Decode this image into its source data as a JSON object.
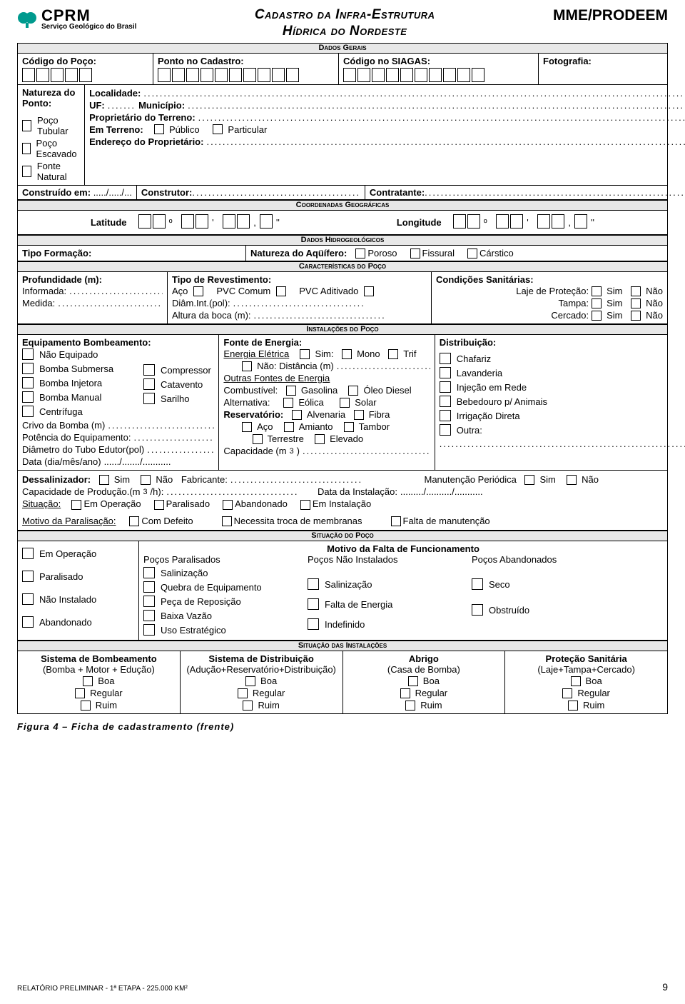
{
  "brand": {
    "name": "CPRM",
    "tagline": "Serviço Geológico do Brasil",
    "logo_color": "#009a8e"
  },
  "title_line1": "Cadastro da Infra-Estrutura",
  "title_line2": "Hídrica do Nordeste",
  "mme": "MME/PRODEEM",
  "box_counts": {
    "codigo_poco": 5,
    "ponto_cadastro": 10,
    "codigo_siagas": 10,
    "lat_deg": 2,
    "lat_min": 2,
    "lat_sec_a": 2,
    "lat_sec_b": 1,
    "lon_deg": 2,
    "lon_min": 2,
    "lon_sec_a": 2,
    "lon_sec_b": 1
  },
  "gerais": {
    "header": "Dados Gerais",
    "codigo_poco": "Código do Poço:",
    "ponto_cadastro": "Ponto no Cadastro:",
    "codigo_siagas": "Código no SIAGAS:",
    "fotografia": "Fotografia:",
    "natureza_ponto": "Natureza do Ponto:",
    "natureza_opts": [
      "Poço Tubular",
      "Poço Escavado",
      "Fonte Natural"
    ],
    "localidade": "Localidade:",
    "uf": "UF:",
    "municipio": "Município:",
    "proprietario": "Proprietário do Terreno:",
    "em_terreno": "Em Terreno:",
    "publico": "Público",
    "particular": "Particular",
    "endereco": "Endereço do Proprietário:",
    "construido": "Construído em:",
    "slashes": "...../...../...",
    "construtor": "Construtor:",
    "contratante": "Contratante:"
  },
  "coord": {
    "header": "Coordenadas Geográficas",
    "latitude": "Latitude",
    "longitude": "Longitude",
    "deg": "º",
    "min": "'",
    "sec": "''",
    "comma": ","
  },
  "hidro": {
    "header": "Dados Hidrogeológicos",
    "tipo_formacao": "Tipo Formação:",
    "natureza": "Natureza do Aqüífero:",
    "opts": [
      "Poroso",
      "Fissural",
      "Cárstico"
    ]
  },
  "carac": {
    "header": "Características do Poço",
    "prof": "Profundidade (m):",
    "informada": "Informada:",
    "medida": "Medida:",
    "tipo_rev": "Tipo de Revestimento:",
    "rev_opts": [
      "Aço",
      "PVC Comum",
      "PVC Aditivado"
    ],
    "diam": "Diâm.Int.(pol):",
    "altura": "Altura da boca (m):",
    "cond": "Condições Sanitárias:",
    "cond_rows": [
      "Laje de Proteção:",
      "Tampa:",
      "Cercado:"
    ],
    "sim": "Sim",
    "nao": "Não"
  },
  "instal": {
    "header": "Instalações do Poço",
    "equip": "Equipamento Bombeamento:",
    "equip_left": [
      "Não Equipado",
      "Bomba Submersa",
      "Bomba Injetora",
      "Bomba Manual",
      "Centrífuga"
    ],
    "equip_right": [
      "Compressor",
      "Catavento",
      "Sarilho"
    ],
    "crivo": "Crivo da Bomba (m)",
    "potencia": "Potência do Equipamento:",
    "diam_tubo": "Diâmetro do Tubo Edutor(pol)",
    "data": "Data (dia/mês/ano)",
    "data_slashes": "....../......./...........",
    "fonte": "Fonte de Energia:",
    "energia_u": "Energia Elétrica",
    "sim": "Sim:",
    "mono": "Mono",
    "trif": "Trif",
    "nao_dist": "Não:  Distância (m)",
    "outras_u": "Outras Fontes de Energia",
    "combustivel": "Combustível:",
    "gasolina": "Gasolina",
    "oleo": "Óleo Diesel",
    "alternativa": "Alternativa:",
    "eolica": "Eólica",
    "solar": "Solar",
    "reservatorio": "Reservatório:",
    "alvenaria": "Alvenaria",
    "fibra": "Fibra",
    "aco": "Aço",
    "amianto": "Amianto",
    "tambor": "Tambor",
    "terrestre": "Terrestre",
    "elevado": "Elevado",
    "capacidade": "Capacidade (m",
    "cap_sup": "3",
    "cap_end": ")",
    "dist": "Distribuição:",
    "dist_opts": [
      "Chafariz",
      "Lavanderia",
      "Injeção em Rede",
      "Bebedouro p/ Animais",
      "Irrigação Direta",
      "Outra:"
    ]
  },
  "dessal": {
    "label": "Dessalinizador:",
    "sim": "Sim",
    "nao": "Não",
    "fabricante": "Fabricante:",
    "manut": "Manutenção Periódica",
    "cap_prod": "Capacidade de Produção.(m",
    "cap_sup": "3",
    "cap_unit": "/h):",
    "data_inst": "Data da Instalação:",
    "data_slashes": "........./........../...........",
    "situacao_u": "Situação:",
    "sit_opts": [
      "Em Operação",
      "Paralisado",
      "Abandonado",
      "Em Instalação"
    ],
    "motivo_u": "Motivo da Paralisação:",
    "motivo_opts": [
      "Com Defeito",
      "Necessita troca de membranas",
      "Falta de manutenção"
    ]
  },
  "sit_poco": {
    "header": "Situação do Poço",
    "left": [
      "Em Operação",
      "Paralisado",
      "Não Instalado",
      "Abandonado"
    ],
    "motivo_title": "Motivo da Falta de Funcionamento",
    "col_headers": [
      "Poços Paralisados",
      "Poços Não Instalados",
      "Poços Abandonados"
    ],
    "col1": [
      "Salinização",
      "Quebra de Equipamento",
      "Peça de Reposição",
      "Baixa Vazão",
      "Uso Estratégico"
    ],
    "col2": [
      "Salinização",
      "Falta de Energia",
      "Indefinido"
    ],
    "col3": [
      "Seco",
      "Obstruído"
    ]
  },
  "sit_inst": {
    "header": "Situação das Instalações",
    "groups": [
      {
        "t": "Sistema de Bombeamento",
        "s": "(Bomba + Motor + Edução)"
      },
      {
        "t": "Sistema de Distribuição",
        "s": "(Adução+Reservatório+Distribuição)"
      },
      {
        "t": "Abrigo",
        "s": "(Casa de Bomba)"
      },
      {
        "t": "Proteção Sanitária",
        "s": "(Laje+Tampa+Cercado)"
      }
    ],
    "quality": [
      "Boa",
      "Regular",
      "Ruim"
    ]
  },
  "caption": "Figura 4 – Ficha de cadastramento (frente)",
  "footer_left": "RELATÓRIO PRELIMINAR - 1ª ETAPA - 225.000 KM²",
  "footer_page": "9"
}
